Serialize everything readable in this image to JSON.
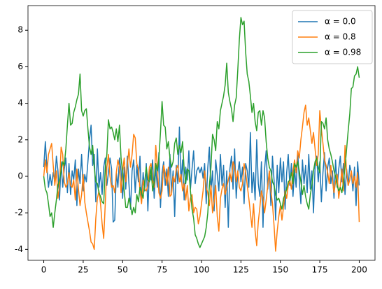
{
  "chart_data": {
    "type": "line",
    "x": [
      0,
      1,
      2,
      3,
      4,
      5,
      6,
      7,
      8,
      9,
      10,
      11,
      12,
      13,
      14,
      15,
      16,
      17,
      18,
      19,
      20,
      21,
      22,
      23,
      24,
      25,
      26,
      27,
      28,
      29,
      30,
      31,
      32,
      33,
      34,
      35,
      36,
      37,
      38,
      39,
      40,
      41,
      42,
      43,
      44,
      45,
      46,
      47,
      48,
      49,
      50,
      51,
      52,
      53,
      54,
      55,
      56,
      57,
      58,
      59,
      60,
      61,
      62,
      63,
      64,
      65,
      66,
      67,
      68,
      69,
      70,
      71,
      72,
      73,
      74,
      75,
      76,
      77,
      78,
      79,
      80,
      81,
      82,
      83,
      84,
      85,
      86,
      87,
      88,
      89,
      90,
      91,
      92,
      93,
      94,
      95,
      96,
      97,
      98,
      99,
      100,
      101,
      102,
      103,
      104,
      105,
      106,
      107,
      108,
      109,
      110,
      111,
      112,
      113,
      114,
      115,
      116,
      117,
      118,
      119,
      120,
      121,
      122,
      123,
      124,
      125,
      126,
      127,
      128,
      129,
      130,
      131,
      132,
      133,
      134,
      135,
      136,
      137,
      138,
      139,
      140,
      141,
      142,
      143,
      144,
      145,
      146,
      147,
      148,
      149,
      150,
      151,
      152,
      153,
      154,
      155,
      156,
      157,
      158,
      159,
      160,
      161,
      162,
      163,
      164,
      165,
      166,
      167,
      168,
      169,
      170,
      171,
      172,
      173,
      174,
      175,
      176,
      177,
      178,
      179,
      180,
      181,
      182,
      183,
      184,
      185,
      186,
      187,
      188,
      189,
      190,
      191,
      192,
      193,
      194,
      195,
      196,
      197,
      198,
      199,
      200
    ],
    "series": [
      {
        "name": "α = 0.0",
        "color": "#1f77b4",
        "values": [
          0.5,
          1.9,
          0.5,
          -0.6,
          0.1,
          -0.5,
          0.2,
          -0.3,
          1.1,
          0.3,
          -1.3,
          0.8,
          -0.6,
          0.4,
          1.0,
          -0.9,
          0.7,
          -1.0,
          0.3,
          -0.2,
          0.9,
          -1.6,
          0.4,
          -0.4,
          1.2,
          -0.8,
          0.1,
          -0.3,
          0.8,
          2.0,
          2.8,
          0.6,
          1.2,
          -1.4,
          1.5,
          -0.6,
          0.2,
          -1.0,
          0.5,
          1.0,
          -0.5,
          0.2,
          1.0,
          0.4,
          -2.5,
          -2.4,
          0.2,
          -0.6,
          1.0,
          0.3,
          -1.2,
          0.5,
          -0.7,
          1.1,
          -0.4,
          -1.8,
          0.3,
          0.9,
          -0.9,
          0.6,
          -0.3,
          1.1,
          -1.4,
          0.2,
          -0.8,
          0.7,
          -1.9,
          0.4,
          -0.2,
          0.9,
          -1.2,
          0.5,
          -0.6,
          1.3,
          -1.7,
          0.2,
          0.8,
          -0.5,
          0.4,
          -1.1,
          1.2,
          -0.9,
          0.3,
          -2.2,
          0.6,
          -0.4,
          2.7,
          -0.3,
          0.9,
          -1.3,
          0.5,
          -0.2,
          1.4,
          -0.7,
          0.4,
          1.4,
          -0.4,
          0.3,
          0.5,
          0.2,
          0.5,
          -0.1,
          0.7,
          -1.5,
          0.5,
          1.6,
          -0.8,
          0.3,
          -1.9,
          0.9,
          0.1,
          -0.8,
          1.2,
          -0.5,
          0.6,
          -1.7,
          0.3,
          -2.8,
          0.4,
          1.1,
          -0.7,
          1.5,
          -1.2,
          0.2,
          0.8,
          -0.3,
          0.5,
          -1.5,
          0.7,
          0.3,
          -0.6,
          2.4,
          -0.9,
          0.2,
          -1.3,
          2.0,
          -0.4,
          -1.1,
          0.8,
          -2.8,
          0.4,
          1.4,
          -0.7,
          0.3,
          -1.6,
          1.1,
          -0.2,
          -2.4,
          0.6,
          -0.9,
          1.0,
          -0.3,
          0.8,
          -1.8,
          0.2,
          1.2,
          -0.5,
          0.7,
          -1.1,
          0.4,
          -0.6,
          1.3,
          -0.2,
          -1.5,
          0.9,
          -0.4,
          0.6,
          -0.9,
          1.2,
          -0.7,
          0.3,
          -2.0,
          0.5,
          1.1,
          -0.3,
          0.8,
          -1.4,
          0.2,
          1.3,
          -0.8,
          0.5,
          1.0,
          -0.4,
          0.3,
          -1.2,
          0.9,
          -0.6,
          0.4,
          1.1,
          -0.3,
          0.7,
          -1.0,
          0.4,
          -0.5,
          0.6,
          0.2,
          -0.8,
          0.5,
          -1.6,
          0.8,
          -0.5
        ]
      },
      {
        "name": "α = 0.8",
        "color": "#ff7f0e",
        "values": [
          0.0,
          0.9,
          0.2,
          1.2,
          1.5,
          1.8,
          0.6,
          -0.5,
          0.3,
          -1.2,
          -0.5,
          1.6,
          1.2,
          -0.3,
          -0.6,
          -0.4,
          0.2,
          -0.5,
          -0.6,
          -0.2,
          -1.3,
          0.4,
          -0.7,
          -1.6,
          -1.0,
          0.1,
          -1.4,
          -2.0,
          -2.5,
          -3.0,
          -3.6,
          -3.7,
          -4.0,
          -2.3,
          -1.2,
          -0.8,
          -1.5,
          -2.6,
          -3.4,
          -1.5,
          0.5,
          1.2,
          0.0,
          -0.6,
          -0.5,
          -0.9,
          0.2,
          0.9,
          0.5,
          -0.9,
          0.3,
          1.0,
          -0.3,
          0.6,
          1.5,
          0.5,
          1.2,
          2.3,
          2.1,
          0.7,
          0.4,
          -0.8,
          -1.5,
          -0.2,
          -0.7,
          -0.8,
          -0.5,
          0.5,
          0.7,
          -0.2,
          -0.6,
          1.7,
          0.5,
          -0.9,
          -1.2,
          -0.8,
          0.6,
          0.2,
          -0.5,
          0.5,
          -1.1,
          -1.0,
          0.0,
          -0.3,
          0.4,
          0.6,
          -0.3,
          0.1,
          -0.8,
          -0.4,
          -1.3,
          -0.5,
          -1.9,
          -1.2,
          -1.0,
          -2.0,
          -1.7,
          -1.8,
          -2.6,
          -2.2,
          -1.5,
          -0.8,
          0.3,
          -0.6,
          -0.9,
          -1.6,
          -0.5,
          -2.0,
          -1.4,
          -0.5,
          -2.2,
          -3.0,
          -1.2,
          -0.7,
          -0.4,
          -1.0,
          -0.6,
          -0.2,
          0.2,
          -0.3,
          0.8,
          0.5,
          -0.3,
          0.3,
          -0.6,
          -0.8,
          -0.4,
          0.7,
          0.2,
          -0.5,
          -1.2,
          -2.0,
          -2.8,
          -1.5,
          -3.0,
          -3.8,
          -2.5,
          -1.7,
          -0.8,
          -1.2,
          -2.0,
          -1.3,
          -0.5,
          0.3,
          -0.8,
          -1.5,
          -2.7,
          -4.1,
          -3.0,
          -2.2,
          -1.6,
          -2.4,
          -1.7,
          -0.8,
          -1.2,
          -0.5,
          -0.2,
          -0.7,
          0.3,
          0.9,
          0.2,
          1.4,
          1.0,
          2.0,
          2.7,
          3.5,
          3.9,
          2.8,
          3.2,
          2.5,
          1.8,
          2.4,
          1.5,
          0.6,
          1.2,
          3.6,
          2.6,
          1.8,
          0.9,
          0.6,
          0.2,
          -0.4,
          0.6,
          -0.2,
          -0.9,
          -0.3,
          0.1,
          -1.2,
          -0.5,
          0.4,
          -0.8,
          1.7,
          0.2,
          -0.5,
          -0.2,
          0.3,
          -0.4,
          0.0,
          -0.6,
          0.2,
          -2.5
        ]
      },
      {
        "name": "α = 0.98",
        "color": "#2ca02c",
        "values": [
          0.0,
          -0.7,
          -0.9,
          -1.5,
          -2.2,
          -2.0,
          -2.8,
          -2.0,
          -1.3,
          -0.5,
          -0.2,
          0.3,
          0.8,
          0.6,
          1.5,
          2.8,
          4.0,
          2.8,
          2.9,
          3.5,
          3.8,
          4.2,
          4.5,
          5.6,
          3.6,
          3.3,
          3.6,
          3.7,
          2.6,
          1.6,
          1.2,
          1.7,
          0.5,
          -0.3,
          -0.4,
          -0.9,
          -1.1,
          -1.4,
          -1.5,
          0.5,
          1.2,
          3.1,
          2.6,
          2.7,
          2.4,
          2.0,
          2.6,
          1.9,
          2.8,
          1.0,
          0.2,
          -0.8,
          -1.7,
          -1.7,
          -1.2,
          -1.6,
          -2.1,
          -1.7,
          -2.0,
          -1.0,
          -1.4,
          -0.6,
          -0.9,
          -1.2,
          -0.3,
          0.5,
          -0.2,
          -0.3,
          0.5,
          -0.8,
          -0.3,
          0.7,
          0.3,
          1.0,
          2.4,
          4.1,
          2.8,
          2.7,
          1.5,
          1.9,
          1.0,
          0.5,
          0.8,
          1.8,
          2.1,
          1.2,
          1.7,
          1.3,
          1.9,
          0.4,
          -0.4,
          0.4,
          0.3,
          -0.8,
          -1.8,
          -2.3,
          -3.2,
          -3.4,
          -3.7,
          -3.9,
          -3.7,
          -3.5,
          -3.3,
          -2.8,
          -2.0,
          -0.5,
          0.5,
          2.3,
          2.0,
          1.4,
          3.0,
          2.6,
          3.6,
          4.0,
          4.4,
          5.0,
          6.2,
          4.6,
          4.1,
          3.7,
          3.0,
          3.9,
          4.3,
          5.8,
          7.5,
          8.7,
          8.3,
          8.5,
          6.8,
          5.6,
          5.2,
          4.4,
          3.5,
          4.0,
          3.0,
          2.5,
          3.5,
          3.6,
          2.8,
          3.6,
          3.2,
          1.9,
          1.0,
          0.5,
          0.3,
          -0.3,
          -0.5,
          -1.0,
          -1.3,
          -1.2,
          -1.5,
          -1.8,
          -1.2,
          -1.0,
          -0.7,
          -0.3,
          -0.2,
          0.2,
          -0.4,
          0.7,
          0.5,
          0.8,
          0.3,
          -0.3,
          -1.0,
          -0.5,
          -1.1,
          -1.5,
          -1.8,
          -1.0,
          -0.5,
          0.3,
          0.8,
          1.0,
          0.5,
          0.2,
          3.0,
          2.9,
          2.6,
          3.2,
          2.0,
          1.5,
          1.2,
          0.8,
          0.3,
          0.0,
          -0.5,
          -0.8,
          -0.6,
          -0.9,
          -0.3,
          0.5,
          1.5,
          2.5,
          3.4,
          4.8,
          4.9,
          5.5,
          5.6,
          6.0,
          5.4
        ]
      }
    ],
    "xlim": [
      -10,
      210
    ],
    "ylim": [
      -4.6,
      9.35
    ],
    "xticks": [
      0,
      25,
      50,
      75,
      100,
      125,
      150,
      175,
      200
    ],
    "yticks": [
      -4,
      -2,
      0,
      2,
      4,
      6,
      8
    ],
    "legend": "upper right",
    "grid": false
  }
}
